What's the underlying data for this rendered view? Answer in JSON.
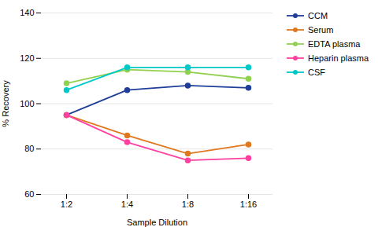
{
  "chart_data": {
    "type": "line",
    "categories": [
      "1:2",
      "1:4",
      "1:8",
      "1:16"
    ],
    "series": [
      {
        "name": "CCM",
        "color": "#1f3d99",
        "marker": "circle",
        "values": [
          95,
          106,
          108,
          107
        ]
      },
      {
        "name": "Serum",
        "color": "#e07820",
        "marker": "circle",
        "values": [
          95,
          86,
          78,
          82
        ]
      },
      {
        "name": "EDTA plasma",
        "color": "#92d050",
        "marker": "circle",
        "values": [
          109,
          115,
          114,
          111
        ]
      },
      {
        "name": "Heparin plasma",
        "color": "#ff40a0",
        "marker": "circle",
        "values": [
          95,
          83,
          75,
          76
        ]
      },
      {
        "name": "CSF",
        "color": "#00c8c8",
        "marker": "circle",
        "values": [
          106,
          116,
          116,
          116
        ]
      }
    ],
    "xlabel": "Sample Dilution",
    "ylabel": "% Recovery",
    "ylim": [
      60,
      140
    ],
    "yticks": [
      60,
      80,
      100,
      120,
      140
    ],
    "grid": true,
    "legend": "right"
  }
}
